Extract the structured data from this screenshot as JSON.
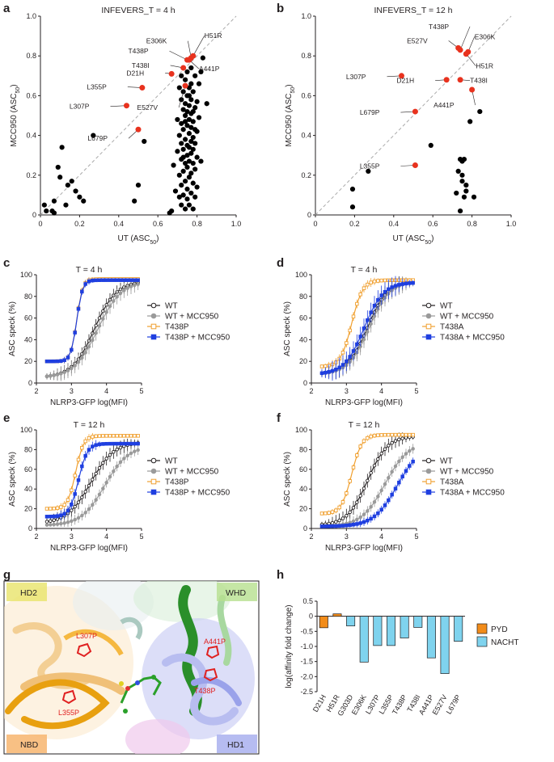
{
  "panel_letters": [
    "a",
    "b",
    "c",
    "d",
    "e",
    "f",
    "g",
    "h"
  ],
  "colors": {
    "black": "#000000",
    "red": "#e8321e",
    "orange": "#f0a030",
    "blue": "#1f3fe0",
    "grey": "#9a9a9a",
    "pyd": "#f28c1a",
    "nacht": "#7fd3ee"
  },
  "chart_data": [
    {
      "panel": "a",
      "type": "scatter",
      "title": "INFEVERS_T = 4 h",
      "xlabel": "UT (ASC",
      "xlabel_sub": "50",
      "ylabel": "MCC950 (ASC",
      "ylabel_sub": "50",
      "xlim": [
        0,
        1.0
      ],
      "ylim": [
        0,
        1.0
      ],
      "xticks": [
        "0",
        "0.2",
        "0.4",
        "0.6",
        "0.8",
        "1.0"
      ],
      "yticks": [
        "0",
        "0.2",
        "0.4",
        "0.6",
        "0.8",
        "1.0"
      ],
      "diagonal": true,
      "highlighted": [
        {
          "label": "E306K",
          "x": 0.77,
          "y": 0.79
        },
        {
          "label": "H51R",
          "x": 0.78,
          "y": 0.8
        },
        {
          "label": "T438P",
          "x": 0.75,
          "y": 0.78
        },
        {
          "label": "T438I",
          "x": 0.73,
          "y": 0.74
        },
        {
          "label": "A441P",
          "x": 0.76,
          "y": 0.78
        },
        {
          "label": "D21H",
          "x": 0.67,
          "y": 0.71
        },
        {
          "label": "L355P",
          "x": 0.52,
          "y": 0.64
        },
        {
          "label": "L307P",
          "x": 0.44,
          "y": 0.55
        },
        {
          "label": "E527V",
          "x": 0.74,
          "y": 0.65
        },
        {
          "label": "L679P",
          "x": 0.5,
          "y": 0.43
        }
      ],
      "points": [
        [
          0.02,
          0.05
        ],
        [
          0.03,
          0.02
        ],
        [
          0.06,
          0.02
        ],
        [
          0.07,
          0.01
        ],
        [
          0.09,
          0.24
        ],
        [
          0.07,
          0.07
        ],
        [
          0.11,
          0.34
        ],
        [
          0.1,
          0.19
        ],
        [
          0.14,
          0.15
        ],
        [
          0.16,
          0.17
        ],
        [
          0.18,
          0.12
        ],
        [
          0.2,
          0.09
        ],
        [
          0.13,
          0.05
        ],
        [
          0.22,
          0.07
        ],
        [
          0.27,
          0.4
        ],
        [
          0.5,
          0.15
        ],
        [
          0.48,
          0.07
        ],
        [
          0.53,
          0.37
        ],
        [
          0.66,
          0.01
        ],
        [
          0.67,
          0.02
        ],
        [
          0.68,
          0.25
        ],
        [
          0.69,
          0.12
        ],
        [
          0.7,
          0.32
        ],
        [
          0.7,
          0.48
        ],
        [
          0.71,
          0.09
        ],
        [
          0.71,
          0.2
        ],
        [
          0.71,
          0.4
        ],
        [
          0.72,
          0.05
        ],
        [
          0.72,
          0.15
        ],
        [
          0.72,
          0.28
        ],
        [
          0.72,
          0.36
        ],
        [
          0.72,
          0.46
        ],
        [
          0.72,
          0.58
        ],
        [
          0.73,
          0.1
        ],
        [
          0.73,
          0.22
        ],
        [
          0.73,
          0.33
        ],
        [
          0.73,
          0.43
        ],
        [
          0.73,
          0.53
        ],
        [
          0.73,
          0.62
        ],
        [
          0.74,
          0.03
        ],
        [
          0.74,
          0.17
        ],
        [
          0.74,
          0.26
        ],
        [
          0.74,
          0.38
        ],
        [
          0.74,
          0.5
        ],
        [
          0.74,
          0.56
        ],
        [
          0.74,
          0.68
        ],
        [
          0.75,
          0.08
        ],
        [
          0.75,
          0.13
        ],
        [
          0.75,
          0.24
        ],
        [
          0.75,
          0.3
        ],
        [
          0.75,
          0.35
        ],
        [
          0.75,
          0.45
        ],
        [
          0.75,
          0.52
        ],
        [
          0.75,
          0.6
        ],
        [
          0.75,
          0.72
        ],
        [
          0.76,
          0.05
        ],
        [
          0.76,
          0.19
        ],
        [
          0.76,
          0.27
        ],
        [
          0.76,
          0.34
        ],
        [
          0.76,
          0.41
        ],
        [
          0.76,
          0.48
        ],
        [
          0.76,
          0.55
        ],
        [
          0.76,
          0.64
        ],
        [
          0.77,
          0.11
        ],
        [
          0.77,
          0.21
        ],
        [
          0.77,
          0.31
        ],
        [
          0.77,
          0.37
        ],
        [
          0.77,
          0.44
        ],
        [
          0.77,
          0.51
        ],
        [
          0.77,
          0.58
        ],
        [
          0.77,
          0.66
        ],
        [
          0.77,
          0.74
        ],
        [
          0.78,
          0.03
        ],
        [
          0.78,
          0.16
        ],
        [
          0.78,
          0.26
        ],
        [
          0.78,
          0.33
        ],
        [
          0.78,
          0.39
        ],
        [
          0.78,
          0.47
        ],
        [
          0.78,
          0.62
        ],
        [
          0.79,
          0.09
        ],
        [
          0.79,
          0.23
        ],
        [
          0.79,
          0.36
        ],
        [
          0.79,
          0.54
        ],
        [
          0.79,
          0.7
        ],
        [
          0.8,
          0.14
        ],
        [
          0.8,
          0.29
        ],
        [
          0.8,
          0.42
        ],
        [
          0.8,
          0.57
        ],
        [
          0.81,
          0.49
        ],
        [
          0.81,
          0.66
        ],
        [
          0.82,
          0.27
        ],
        [
          0.82,
          0.72
        ],
        [
          0.83,
          0.79
        ],
        [
          0.85,
          0.56
        ],
        [
          0.71,
          0.64
        ],
        [
          0.74,
          0.47
        ],
        [
          0.78,
          0.52
        ],
        [
          0.73,
          0.29
        ],
        [
          0.76,
          0.6
        ],
        [
          0.72,
          0.7
        ],
        [
          0.79,
          0.43
        ]
      ]
    },
    {
      "panel": "b",
      "type": "scatter",
      "title": "INFEVERS_T = 12 h",
      "xlabel": "UT (ASC",
      "xlabel_sub": "50",
      "ylabel": "MCC950 (ASC",
      "ylabel_sub": "50",
      "xlim": [
        0,
        1.0
      ],
      "ylim": [
        0,
        1.0
      ],
      "xticks": [
        "0",
        "0.2",
        "0.4",
        "0.6",
        "0.8",
        "1.0"
      ],
      "yticks": [
        "0",
        "0.2",
        "0.4",
        "0.6",
        "0.8",
        "1.0"
      ],
      "diagonal": true,
      "highlighted": [
        {
          "label": "T438P",
          "x": 0.74,
          "y": 0.83
        },
        {
          "label": "E306K",
          "x": 0.78,
          "y": 0.82
        },
        {
          "label": "E527V",
          "x": 0.73,
          "y": 0.84
        },
        {
          "label": "H51R",
          "x": 0.77,
          "y": 0.81
        },
        {
          "label": "L307P",
          "x": 0.44,
          "y": 0.7
        },
        {
          "label": "D21H",
          "x": 0.67,
          "y": 0.68
        },
        {
          "label": "T438I",
          "x": 0.74,
          "y": 0.68
        },
        {
          "label": "A441P",
          "x": 0.8,
          "y": 0.63
        },
        {
          "label": "L679P",
          "x": 0.51,
          "y": 0.52
        },
        {
          "label": "L355P",
          "x": 0.51,
          "y": 0.25
        }
      ],
      "points": [
        [
          0.19,
          0.13
        ],
        [
          0.19,
          0.04
        ],
        [
          0.27,
          0.22
        ],
        [
          0.59,
          0.35
        ],
        [
          0.74,
          0.28
        ],
        [
          0.75,
          0.27
        ],
        [
          0.76,
          0.28
        ],
        [
          0.73,
          0.22
        ],
        [
          0.75,
          0.2
        ],
        [
          0.77,
          0.15
        ],
        [
          0.72,
          0.11
        ],
        [
          0.76,
          0.09
        ],
        [
          0.74,
          0.02
        ],
        [
          0.81,
          0.09
        ],
        [
          0.79,
          0.47
        ],
        [
          0.84,
          0.52
        ],
        [
          0.77,
          0.12
        ],
        [
          0.75,
          0.17
        ]
      ]
    },
    {
      "panel": "c",
      "type": "line",
      "title": "T = 4 h",
      "xlabel": "NLRP3-GFP log(MFI)",
      "ylabel": "ASC speck (%)",
      "xlim": [
        2,
        5
      ],
      "ylim": [
        0,
        100
      ],
      "xticks": [
        "2",
        "3",
        "4",
        "5"
      ],
      "yticks": [
        "0",
        "20",
        "40",
        "60",
        "80",
        "100"
      ],
      "series": [
        {
          "name": "WT",
          "style": "wt",
          "base": 5,
          "top": 94,
          "mid": 3.65,
          "k": 3.2,
          "err": 6
        },
        {
          "name": "WT + MCC950",
          "style": "wtm",
          "base": 5,
          "top": 94,
          "mid": 3.75,
          "k": 3.0,
          "err": 7
        },
        {
          "name": "T438P",
          "style": "mut",
          "base": 20,
          "top": 96,
          "mid": 3.15,
          "k": 12,
          "err": 3
        },
        {
          "name": "T438P + MCC950",
          "style": "mutm",
          "base": 20,
          "top": 95,
          "mid": 3.15,
          "k": 12,
          "err": 3
        }
      ]
    },
    {
      "panel": "d",
      "type": "line",
      "title": "T = 4 h",
      "xlabel": "NLRP3-GFP log(MFI)",
      "ylabel": "ASC speck (%)",
      "xlim": [
        2,
        5
      ],
      "ylim": [
        0,
        100
      ],
      "xticks": [
        "2",
        "3",
        "4",
        "5"
      ],
      "yticks": [
        "0",
        "20",
        "40",
        "60",
        "80",
        "100"
      ],
      "series": [
        {
          "name": "WT",
          "style": "wt",
          "base": 8,
          "top": 94,
          "mid": 3.6,
          "k": 3.5,
          "err": 8
        },
        {
          "name": "WT + MCC950",
          "style": "wtm",
          "base": 8,
          "top": 94,
          "mid": 3.65,
          "k": 3.4,
          "err": 8
        },
        {
          "name": "T438A",
          "style": "mut",
          "base": 15,
          "top": 95,
          "mid": 3.15,
          "k": 6.5,
          "err": 4
        },
        {
          "name": "T438A + MCC950",
          "style": "mutm",
          "base": 8,
          "top": 93,
          "mid": 3.5,
          "k": 3.6,
          "err": 9
        }
      ]
    },
    {
      "panel": "e",
      "type": "line",
      "title": "T = 12 h",
      "xlabel": "NLRP3-GFP log(MFI)",
      "ylabel": "ASC speck (%)",
      "xlim": [
        2,
        5
      ],
      "ylim": [
        0,
        100
      ],
      "xticks": [
        "2",
        "3",
        "4",
        "5"
      ],
      "yticks": [
        "0",
        "20",
        "40",
        "60",
        "80",
        "100"
      ],
      "series": [
        {
          "name": "WT",
          "style": "wt",
          "base": 5,
          "top": 88,
          "mid": 3.55,
          "k": 3.0,
          "err": 7
        },
        {
          "name": "WT + MCC950",
          "style": "wtm",
          "base": 3,
          "top": 84,
          "mid": 3.95,
          "k": 3.0,
          "err": 5
        },
        {
          "name": "T438P",
          "style": "mut",
          "base": 20,
          "top": 94,
          "mid": 3.12,
          "k": 9,
          "err": 4
        },
        {
          "name": "T438P + MCC950",
          "style": "mutm",
          "base": 12,
          "top": 86,
          "mid": 3.2,
          "k": 8,
          "err": 5
        }
      ]
    },
    {
      "panel": "f",
      "type": "line",
      "title": "T = 12 h",
      "xlabel": "NLRP3-GFP log(MFI)",
      "ylabel": "ASC speck (%)",
      "xlim": [
        2,
        5
      ],
      "ylim": [
        0,
        100
      ],
      "xticks": [
        "2",
        "3",
        "4",
        "5"
      ],
      "yticks": [
        "0",
        "20",
        "40",
        "60",
        "80",
        "100"
      ],
      "series": [
        {
          "name": "WT",
          "style": "wt",
          "base": 3,
          "top": 94,
          "mid": 3.6,
          "k": 3.5,
          "err": 7
        },
        {
          "name": "WT + MCC950",
          "style": "wtm",
          "base": 2,
          "top": 88,
          "mid": 4.1,
          "k": 3.0,
          "err": 5
        },
        {
          "name": "T438A",
          "style": "mut",
          "base": 15,
          "top": 95,
          "mid": 3.15,
          "k": 7,
          "err": 3
        },
        {
          "name": "T438A + MCC950",
          "style": "mutm",
          "base": 2,
          "top": 85,
          "mid": 4.45,
          "k": 3.0,
          "err": 4
        }
      ]
    },
    {
      "panel": "h",
      "type": "bar",
      "ylabel": "log(affinity fold change)",
      "ylim": [
        -2.5,
        0.5
      ],
      "yticks": [
        "0.5",
        "0",
        "-0.5",
        "-1.0",
        "-1.5",
        "-2.0",
        "-2.5"
      ],
      "categories": [
        "D21H",
        "H51R",
        "G303D",
        "E306K",
        "L307P",
        "L355P",
        "T438P",
        "T438I",
        "A441P",
        "E527V",
        "L679P"
      ],
      "values": [
        -0.38,
        0.08,
        -0.32,
        -1.52,
        -0.97,
        -0.97,
        -0.72,
        -0.37,
        -1.38,
        -1.9,
        -0.83
      ],
      "groups": [
        "PYD",
        "PYD",
        "NACHT",
        "NACHT",
        "NACHT",
        "NACHT",
        "NACHT",
        "NACHT",
        "NACHT",
        "NACHT",
        "NACHT"
      ],
      "legend": [
        "PYD",
        "NACHT"
      ]
    }
  ],
  "structure": {
    "domains": [
      "HD2",
      "WHD",
      "NBD",
      "HD1"
    ],
    "mutations": [
      "L307P",
      "A441P",
      "T438P",
      "L355P"
    ]
  }
}
